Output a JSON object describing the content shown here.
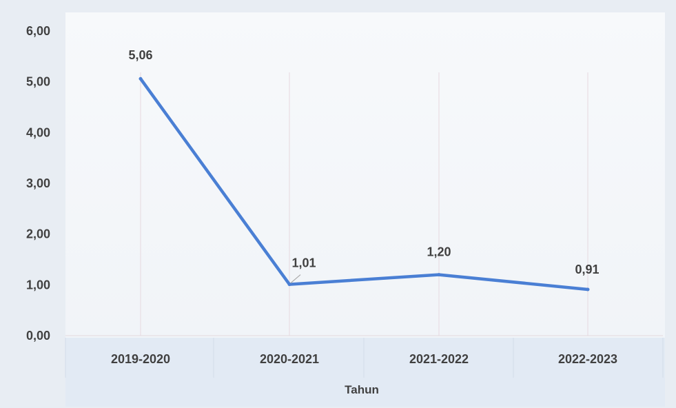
{
  "chart_data": {
    "type": "line",
    "categories": [
      "2019-2020",
      "2020-2021",
      "2021-2022",
      "2022-2023"
    ],
    "series": [
      {
        "values": [
          5.06,
          1.01,
          1.2,
          0.91
        ],
        "color": "#4a7fd4"
      }
    ],
    "data_labels": [
      "5,06",
      "1,01",
      "1,20",
      "0,91"
    ],
    "y_tick_labels": [
      "0,00",
      "1,00",
      "2,00",
      "3,00",
      "4,00",
      "5,00",
      "6,00"
    ],
    "y_ticks": [
      0,
      1,
      2,
      3,
      4,
      5,
      6
    ],
    "ylim": [
      0,
      6
    ],
    "xlabel": "Tahun",
    "ylabel": "",
    "title": "",
    "grid": "vertical",
    "legend": "none"
  }
}
